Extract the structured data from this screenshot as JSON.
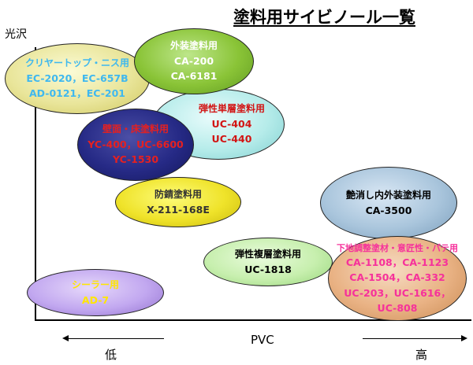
{
  "title": "塗料用サイビノール一覧",
  "y_axis_label": "光沢",
  "x_axis": {
    "label": "PVC",
    "low": "低",
    "high": "高"
  },
  "groups": [
    {
      "key": "clear",
      "name": "クリヤートップ・ニス用",
      "lines": [
        "EC-2020，EC-657B",
        "AD-0121，EC-201"
      ]
    },
    {
      "key": "exterior",
      "name": "外装塗料用",
      "lines": [
        "CA-200",
        "CA-6181"
      ]
    },
    {
      "key": "elastic1",
      "name": "弾性単層塗料用",
      "lines": [
        "UC-404",
        "UC-440"
      ]
    },
    {
      "key": "wall",
      "name": "壁面・床塗料用",
      "lines": [
        "YC-400，UC-6600",
        "YC-1530"
      ]
    },
    {
      "key": "rust",
      "name": "防錆塗料用",
      "lines": [
        "X-211-168E"
      ]
    },
    {
      "key": "matte",
      "name": "艶消し内外装塗料用",
      "lines": [
        "CA-3500"
      ]
    },
    {
      "key": "elastic2",
      "name": "弾性複層塗料用",
      "lines": [
        "UC-1818"
      ]
    },
    {
      "key": "base",
      "name": "下地調整塗材・意匠性・パテ用",
      "lines": [
        "CA-1108，CA-1123",
        "CA-1504，CA-332",
        "UC-203，UC-1616，",
        "UC-808"
      ]
    },
    {
      "key": "sealer",
      "name": "シーラー用",
      "lines": [
        "AD-7"
      ]
    }
  ]
}
